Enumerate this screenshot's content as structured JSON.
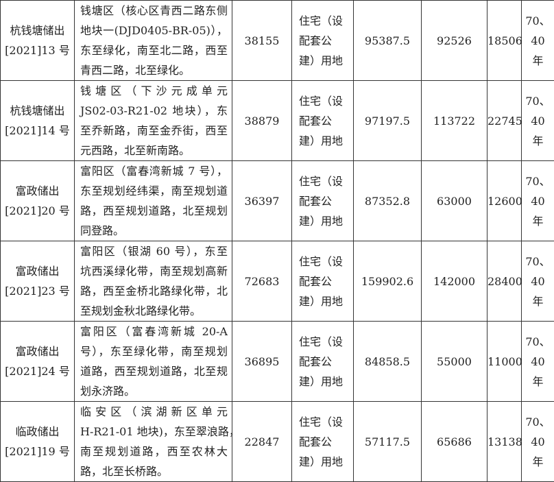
{
  "rows": [
    {
      "code": [
        "杭钱塘储出",
        "[2021]13 号"
      ],
      "location": [
        "钱塘区（核心区青西二路东侧",
        "地块一(DJD0405-BR-05)），",
        "东至绿化，南至北二路，西至",
        "青西二路，北至绿化。"
      ],
      "area": "38155",
      "use": [
        "住宅（设",
        "配套公",
        "建）用地"
      ],
      "building_area": "95387.5",
      "start_price": "92526",
      "deposit": "18506",
      "term": [
        "70、",
        "40",
        "年"
      ]
    },
    {
      "code": [
        "杭钱塘储出",
        "[2021]14 号"
      ],
      "location": [
        "钱 塘 区 （ 下 沙 元 成 单 元",
        "JS02-03-R21-02 地块），东",
        "至乔新路，南至金乔街，西至",
        "元西路，北至新南路。"
      ],
      "area": "38879",
      "use": [
        "住宅（设",
        "配套公",
        "建）用地"
      ],
      "building_area": "97197.5",
      "start_price": "113722",
      "deposit": "22745",
      "term": [
        "70、",
        "40",
        "年"
      ]
    },
    {
      "code": [
        "富政储出",
        "[2021]20 号"
      ],
      "location": [
        "富阳区（富春湾新城 7 号），",
        "东至规划经纬渠，南至规划道",
        "路，西至规划道路，北至规划",
        "同登路。"
      ],
      "area": "36397",
      "use": [
        "住宅（设",
        "配套公",
        "建）用地"
      ],
      "building_area": "87352.8",
      "start_price": "63000",
      "deposit": "12600",
      "term": [
        "70、",
        "40",
        "年"
      ]
    },
    {
      "code": [
        "富政储出",
        "[2021]23 号"
      ],
      "location": [
        "富阳区（银湖 60 号），东至",
        "坑西溪绿化带，南至规划高新",
        "路，西至金桥北路绿化带，北",
        "至规划金秋北路绿化带。"
      ],
      "area": "72683",
      "use": [
        "住宅（设",
        "配套公",
        "建）用地"
      ],
      "building_area": "159902.6",
      "start_price": "142000",
      "deposit": "28400",
      "term": [
        "70、",
        "40",
        "年"
      ]
    },
    {
      "code": [
        "富政储出",
        "[2021]24 号"
      ],
      "location": [
        "富阳区（富春湾新城 20-A",
        "号），东至绿化带，南至规划",
        "道路，西至规划道路，北至规",
        "划永济路。"
      ],
      "area": "36895",
      "use": [
        "住宅（设",
        "配套公",
        "建）用地"
      ],
      "building_area": "84858.5",
      "start_price": "55000",
      "deposit": "11000",
      "term": [
        "70、",
        "40",
        "年"
      ]
    },
    {
      "code": [
        "临政储出",
        "[2021]19 号"
      ],
      "location": [
        "临 安 区 （ 滨 湖 新 区 单 元",
        "H-R21-01 地块)，东至翠浪路，",
        "南至规划道路，西至农林大",
        "路，北至长桥路。"
      ],
      "area": "22847",
      "use": [
        "住宅（设",
        "配套公",
        "建）用地"
      ],
      "building_area": "57117.5",
      "start_price": "65686",
      "deposit": "13138",
      "term": [
        "70、",
        "40",
        "年"
      ]
    }
  ]
}
